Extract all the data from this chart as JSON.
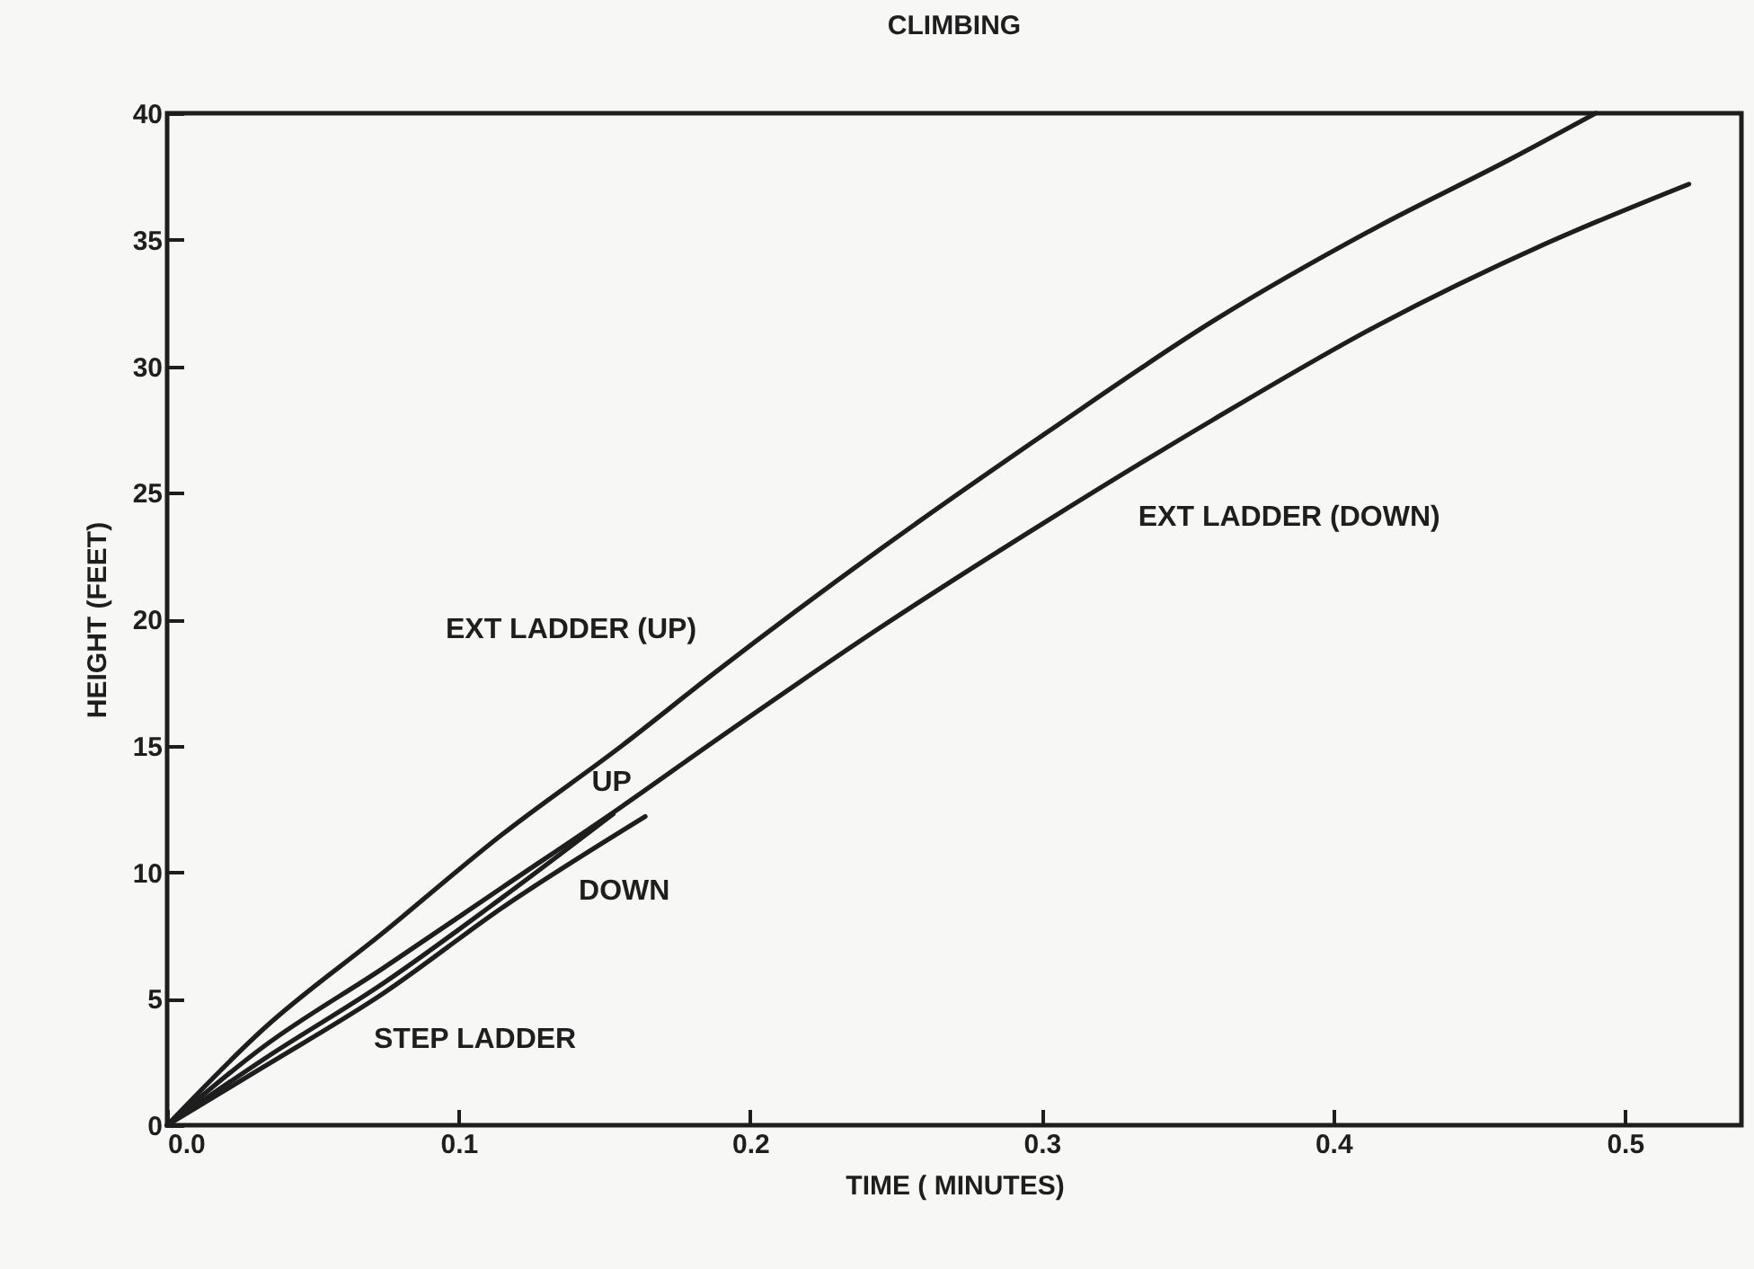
{
  "chart_data": {
    "type": "line",
    "title": "CLIMBING",
    "xlabel": "TIME ( MINUTES)",
    "ylabel": "HEIGHT (FEET)",
    "xlim": [
      0,
      0.54
    ],
    "xticks": [
      {
        "value": 0,
        "label": "0.0"
      },
      0.1,
      0.2,
      0.3,
      0.4,
      0.5
    ],
    "ylim": [
      0,
      40
    ],
    "yticks": [
      0,
      5,
      10,
      15,
      20,
      25,
      30,
      35,
      40
    ],
    "grid": false,
    "legend": false,
    "marker": "none",
    "line_style": "solid",
    "series": [
      {
        "name": "EXT LADDER (UP)",
        "color": "#1e1e1e",
        "x": [
          0,
          0.033,
          0.074,
          0.115,
          0.156,
          0.188,
          0.245,
          0.302,
          0.359,
          0.415,
          0.461,
          0.49
        ],
        "values": [
          0,
          3.8,
          7.6,
          11.5,
          15.0,
          17.9,
          22.8,
          27.4,
          31.8,
          35.5,
          38.2,
          40
        ]
      },
      {
        "name": "EXT LADDER (DOWN)",
        "color": "#1e1e1e",
        "x": [
          0,
          0.033,
          0.074,
          0.115,
          0.156,
          0.188,
          0.245,
          0.302,
          0.359,
          0.415,
          0.472,
          0.522
        ],
        "values": [
          0,
          3.1,
          6.2,
          9.4,
          12.6,
          15.2,
          19.7,
          23.9,
          27.9,
          31.6,
          34.8,
          37.2
        ]
      },
      {
        "name": "UP",
        "color": "#1e1e1e",
        "x": [
          0,
          0.033,
          0.074,
          0.115,
          0.153
        ],
        "values": [
          0,
          2.6,
          5.6,
          9.0,
          12.3
        ]
      },
      {
        "name": "DOWN",
        "color": "#1e1e1e",
        "x": [
          0,
          0.033,
          0.074,
          0.115,
          0.164
        ],
        "values": [
          0,
          2.3,
          5.2,
          8.6,
          12.2
        ]
      }
    ],
    "annotations": [
      "STEP LADDER"
    ]
  }
}
